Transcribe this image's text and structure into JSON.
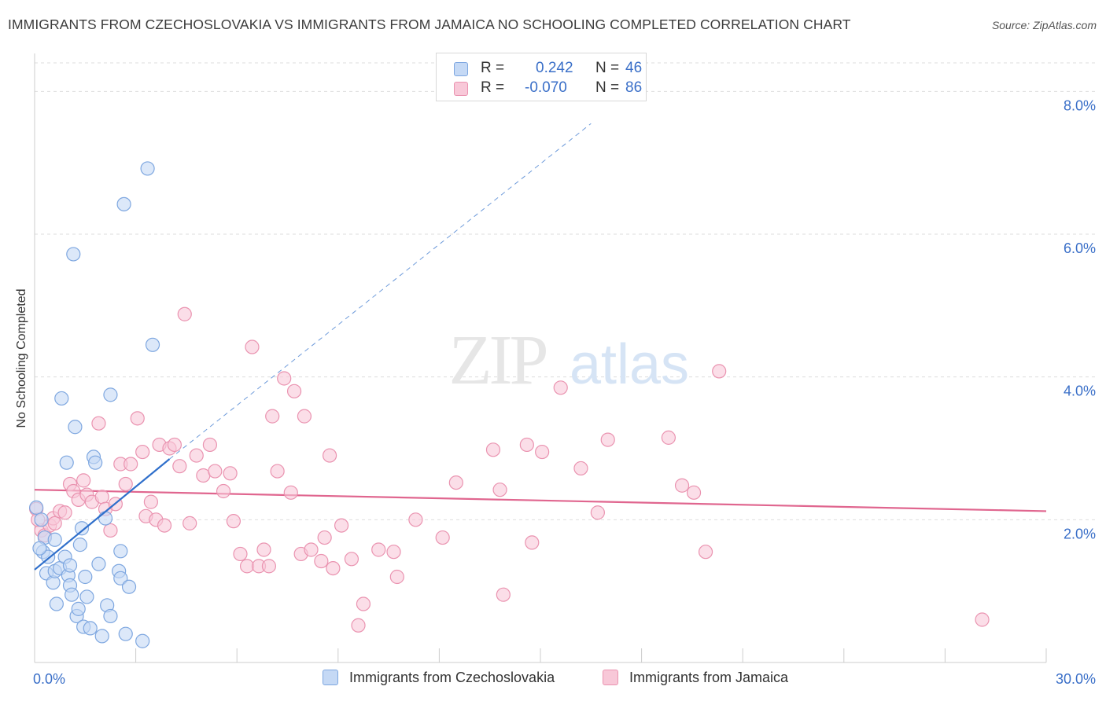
{
  "title": "IMMIGRANTS FROM CZECHOSLOVAKIA VS IMMIGRANTS FROM JAMAICA NO SCHOOLING COMPLETED CORRELATION CHART",
  "source": "Source: ZipAtlas.com",
  "watermark": {
    "zip": "ZIP",
    "atlas": "atlas"
  },
  "colors": {
    "blue_fill": "#c5d9f5",
    "blue_stroke": "#7ea7e0",
    "blue_line": "#2f6fcb",
    "pink_fill": "#f8c8d8",
    "pink_stroke": "#ea93b0",
    "pink_line": "#e0668f",
    "tick_label": "#3a6fc8",
    "grid": "#dddddd"
  },
  "legend": {
    "rows": [
      {
        "r_label": "R =",
        "r_value": "0.242",
        "n_label": "N =",
        "n_value": "46",
        "color": "blue"
      },
      {
        "r_label": "R =",
        "r_value": "-0.070",
        "n_label": "N =",
        "n_value": "86",
        "color": "pink"
      }
    ]
  },
  "bottom_legend": [
    {
      "label": "Immigrants from Czechoslovakia",
      "color": "blue"
    },
    {
      "label": "Immigrants from Jamaica",
      "color": "pink"
    }
  ],
  "chart_data": {
    "type": "scatter",
    "title": "IMMIGRANTS FROM CZECHOSLOVAKIA VS IMMIGRANTS FROM JAMAICA NO SCHOOLING COMPLETED CORRELATION CHART",
    "xlabel": "",
    "ylabel": "No Schooling Completed",
    "xlim": [
      0,
      30
    ],
    "ylim": [
      0,
      8.4
    ],
    "x_tick_labels": [
      "0.0%",
      "30.0%"
    ],
    "y_ticks": [
      2,
      4,
      6,
      8
    ],
    "y_tick_labels": [
      "2.0%",
      "4.0%",
      "6.0%",
      "8.0%"
    ],
    "grid": true,
    "legend_position": "top-center",
    "series": [
      {
        "name": "Immigrants from Czechoslovakia",
        "color": "blue",
        "trend": {
          "x": [
            0,
            4.0
          ],
          "y": [
            1.3,
            2.85
          ],
          "dashed_extension_to": [
            16.5,
            7.55
          ]
        },
        "points": [
          [
            0.05,
            2.17
          ],
          [
            0.2,
            2.0
          ],
          [
            0.25,
            1.55
          ],
          [
            0.3,
            1.75
          ],
          [
            0.35,
            1.25
          ],
          [
            0.4,
            1.48
          ],
          [
            0.55,
            1.12
          ],
          [
            0.6,
            1.72
          ],
          [
            0.6,
            1.28
          ],
          [
            0.65,
            0.82
          ],
          [
            0.75,
            1.32
          ],
          [
            0.8,
            3.7
          ],
          [
            0.9,
            1.48
          ],
          [
            0.95,
            2.8
          ],
          [
            1.0,
            1.22
          ],
          [
            1.05,
            1.36
          ],
          [
            1.05,
            1.08
          ],
          [
            1.1,
            0.95
          ],
          [
            1.15,
            5.72
          ],
          [
            1.2,
            3.3
          ],
          [
            1.25,
            0.65
          ],
          [
            1.3,
            0.75
          ],
          [
            1.35,
            1.65
          ],
          [
            1.4,
            1.88
          ],
          [
            1.45,
            0.5
          ],
          [
            1.5,
            1.2
          ],
          [
            1.55,
            0.92
          ],
          [
            1.65,
            0.48
          ],
          [
            1.75,
            2.88
          ],
          [
            1.8,
            2.8
          ],
          [
            1.9,
            1.38
          ],
          [
            2.0,
            0.37
          ],
          [
            2.1,
            2.02
          ],
          [
            2.15,
            0.8
          ],
          [
            2.25,
            3.75
          ],
          [
            2.25,
            0.65
          ],
          [
            2.5,
            1.28
          ],
          [
            2.55,
            1.18
          ],
          [
            2.55,
            1.56
          ],
          [
            2.65,
            6.42
          ],
          [
            2.7,
            0.4
          ],
          [
            2.8,
            1.06
          ],
          [
            3.2,
            0.3
          ],
          [
            3.35,
            6.92
          ],
          [
            3.5,
            4.45
          ],
          [
            0.15,
            1.6
          ]
        ]
      },
      {
        "name": "Immigrants from Jamaica",
        "color": "pink",
        "trend": {
          "x": [
            0,
            30
          ],
          "y": [
            2.42,
            2.12
          ]
        },
        "points": [
          [
            0.05,
            2.15
          ],
          [
            0.2,
            1.85
          ],
          [
            0.3,
            1.78
          ],
          [
            0.45,
            1.92
          ],
          [
            0.55,
            2.02
          ],
          [
            0.6,
            1.95
          ],
          [
            0.75,
            2.12
          ],
          [
            0.9,
            2.1
          ],
          [
            1.05,
            2.5
          ],
          [
            1.15,
            2.4
          ],
          [
            1.3,
            2.28
          ],
          [
            1.45,
            2.55
          ],
          [
            1.55,
            2.35
          ],
          [
            1.7,
            2.25
          ],
          [
            1.9,
            3.35
          ],
          [
            2.0,
            2.32
          ],
          [
            2.1,
            2.15
          ],
          [
            2.25,
            1.85
          ],
          [
            2.4,
            2.22
          ],
          [
            2.55,
            2.78
          ],
          [
            2.7,
            2.5
          ],
          [
            2.85,
            2.78
          ],
          [
            3.05,
            3.42
          ],
          [
            3.2,
            2.95
          ],
          [
            3.3,
            2.05
          ],
          [
            3.45,
            2.25
          ],
          [
            3.6,
            2.0
          ],
          [
            3.7,
            3.05
          ],
          [
            3.85,
            1.92
          ],
          [
            4.0,
            3.0
          ],
          [
            4.15,
            3.05
          ],
          [
            4.3,
            2.75
          ],
          [
            4.45,
            4.88
          ],
          [
            4.6,
            1.95
          ],
          [
            4.8,
            2.9
          ],
          [
            5.0,
            2.62
          ],
          [
            5.2,
            3.05
          ],
          [
            5.35,
            2.68
          ],
          [
            5.6,
            2.4
          ],
          [
            5.8,
            2.65
          ],
          [
            5.9,
            1.98
          ],
          [
            6.1,
            1.52
          ],
          [
            6.3,
            1.35
          ],
          [
            6.45,
            4.42
          ],
          [
            6.65,
            1.35
          ],
          [
            6.8,
            1.58
          ],
          [
            6.95,
            1.35
          ],
          [
            7.05,
            3.45
          ],
          [
            7.2,
            2.68
          ],
          [
            7.4,
            3.98
          ],
          [
            7.6,
            2.38
          ],
          [
            7.7,
            3.8
          ],
          [
            7.9,
            1.52
          ],
          [
            8.0,
            3.45
          ],
          [
            8.2,
            1.58
          ],
          [
            8.5,
            1.42
          ],
          [
            8.6,
            1.75
          ],
          [
            8.75,
            2.9
          ],
          [
            8.85,
            1.32
          ],
          [
            9.1,
            1.92
          ],
          [
            9.4,
            1.45
          ],
          [
            9.6,
            0.52
          ],
          [
            9.75,
            0.82
          ],
          [
            10.2,
            1.58
          ],
          [
            10.65,
            1.55
          ],
          [
            10.75,
            1.2
          ],
          [
            11.3,
            2.0
          ],
          [
            12.1,
            1.75
          ],
          [
            12.5,
            2.52
          ],
          [
            13.6,
            2.98
          ],
          [
            13.8,
            2.42
          ],
          [
            13.9,
            0.95
          ],
          [
            14.6,
            3.05
          ],
          [
            14.75,
            1.68
          ],
          [
            15.05,
            2.95
          ],
          [
            15.6,
            3.85
          ],
          [
            16.2,
            2.72
          ],
          [
            16.7,
            2.1
          ],
          [
            17.0,
            3.12
          ],
          [
            18.8,
            3.15
          ],
          [
            19.2,
            2.48
          ],
          [
            19.55,
            2.38
          ],
          [
            19.9,
            1.55
          ],
          [
            20.3,
            4.08
          ],
          [
            28.1,
            0.6
          ],
          [
            0.1,
            2.0
          ]
        ]
      }
    ]
  }
}
